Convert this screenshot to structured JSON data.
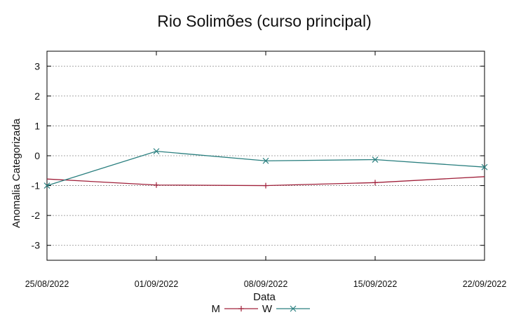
{
  "chart_data": {
    "type": "line",
    "title": "Rio Solimões (curso principal)",
    "xlabel": "Data",
    "ylabel": "Anomalia Categorizada",
    "categories": [
      "25/08/2022",
      "01/09/2022",
      "08/09/2022",
      "15/09/2022",
      "22/09/2022"
    ],
    "yticks": [
      3,
      2,
      1,
      0,
      -1,
      -2,
      -3
    ],
    "ylim": [
      -3.5,
      3.5
    ],
    "grid": true,
    "legend_position": "bottom-center",
    "series": [
      {
        "name": "M",
        "color": "#a0203a",
        "marker": "plus",
        "values": [
          -0.78,
          -0.98,
          -1.0,
          -0.9,
          -0.7
        ],
        "marker_values": [
          null,
          -0.98,
          -1.0,
          -0.9,
          null
        ]
      },
      {
        "name": "W",
        "color": "#2a7f7f",
        "marker": "x",
        "values": [
          -1.0,
          0.15,
          -0.17,
          -0.13,
          -0.38
        ],
        "marker_values": [
          -1.0,
          0.15,
          -0.17,
          -0.13,
          -0.38
        ]
      }
    ]
  }
}
